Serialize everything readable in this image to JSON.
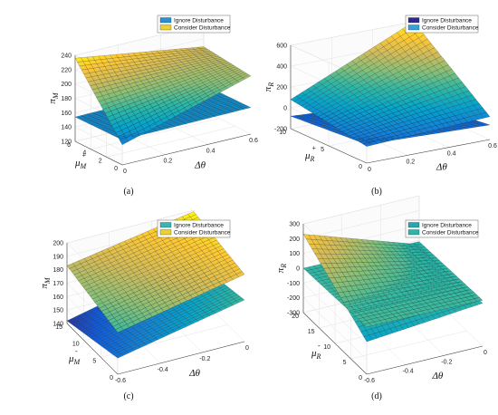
{
  "chart_data": [
    {
      "type": "surface",
      "caption": "(a)",
      "z_label": {
        "main": "π",
        "sub": "M",
        "sup": ""
      },
      "y_label": {
        "main": "μ",
        "sub": "M",
        "sup": "+"
      },
      "x_label": "Δθ",
      "x_ticks": [
        "0",
        "0.2",
        "0.4",
        "0.6"
      ],
      "y_ticks": [
        "0",
        "2",
        "4",
        "6"
      ],
      "z_ticks": [
        "120",
        "140",
        "160",
        "180",
        "200",
        "220",
        "240"
      ],
      "zlim": [
        120,
        240
      ],
      "legend": [
        "Ignore Disturbance",
        "Consider Disturbance"
      ],
      "colors": [
        "#2d8fce",
        "#e9d13a"
      ],
      "series": [
        {
          "name": "Ignore Disturbance",
          "corners": {
            "x0y0": 155,
            "x1y0": 157,
            "x0y1": 154,
            "x1y1": 156
          }
        },
        {
          "name": "Consider Disturbance",
          "corners": {
            "x0y0": 148,
            "x1y0": 201,
            "x0y1": 236,
            "x1y1": 209
          }
        }
      ]
    },
    {
      "type": "surface",
      "caption": "(b)",
      "z_label": {
        "main": "π",
        "sub": "R",
        "sup": ""
      },
      "y_label": {
        "main": "μ",
        "sub": "R",
        "sup": "+"
      },
      "x_label": "Δθ",
      "x_ticks": [
        "0",
        "0.2",
        "0.4",
        "0.6"
      ],
      "y_ticks": [
        "0",
        "5",
        "10"
      ],
      "z_ticks": [
        "-200",
        "0",
        "200",
        "400",
        "600"
      ],
      "zlim": [
        -200,
        600
      ],
      "legend": [
        "Ignore Disturbance",
        "Consider Disturbance"
      ],
      "colors": [
        "#2f2a8a",
        "#3aa0d8"
      ],
      "series": [
        {
          "name": "Ignore Disturbance",
          "corners": {
            "x0y0": -20,
            "x1y0": -60,
            "x0y1": -80,
            "x1y1": -150
          }
        },
        {
          "name": "Consider Disturbance",
          "corners": {
            "x0y0": -40,
            "x1y0": 20,
            "x0y1": 80,
            "x1y1": 600
          }
        }
      ]
    },
    {
      "type": "surface",
      "caption": "(c)",
      "z_label": {
        "main": "π",
        "sub": "M",
        "sup": ""
      },
      "y_label": {
        "main": "μ",
        "sub": "M",
        "sup": "-"
      },
      "x_label": "Δθ",
      "x_ticks": [
        "-0.6",
        "-0.4",
        "-0.2",
        "0"
      ],
      "y_ticks": [
        "0",
        "5",
        "10",
        "15"
      ],
      "z_ticks": [
        "140",
        "150",
        "160",
        "170",
        "180",
        "190",
        "200"
      ],
      "zlim": [
        140,
        200
      ],
      "legend": [
        "Ignore Disturbance",
        "Consider Disturbance"
      ],
      "colors": [
        "#3db3b1",
        "#e9d13a"
      ],
      "series": [
        {
          "name": "Ignore Disturbance",
          "corners": {
            "x0y0": 152,
            "x1y0": 171,
            "x0y1": 142,
            "x1y1": 163
          }
        },
        {
          "name": "Consider Disturbance",
          "corners": {
            "x0y0": 171,
            "x1y0": 190,
            "x0y1": 183,
            "x1y1": 199
          }
        }
      ]
    },
    {
      "type": "surface",
      "caption": "(d)",
      "z_label": {
        "main": "π",
        "sub": "R",
        "sup": ""
      },
      "y_label": {
        "main": "μ",
        "sub": "R",
        "sup": "-"
      },
      "x_label": "Δθ",
      "x_ticks": [
        "-0.6",
        "-0.4",
        "-0.2",
        "0"
      ],
      "y_ticks": [
        "0",
        "5",
        "10",
        "15",
        "20"
      ],
      "z_ticks": [
        "-300",
        "-200",
        "-100",
        "0",
        "100",
        "200",
        "300"
      ],
      "zlim": [
        -300,
        300
      ],
      "legend": [
        "Ignore Disturbance",
        "Consider Disturbance"
      ],
      "colors": [
        "#2aa7aa",
        "#33b3a8"
      ],
      "series": [
        {
          "name": "Ignore Disturbance",
          "corners": {
            "x0y0": 20,
            "x1y0": 10,
            "x0y1": 0,
            "x1y1": -10
          }
        },
        {
          "name": "Consider Disturbance",
          "corners": {
            "x0y0": -80,
            "x1y0": -10,
            "x0y1": 230,
            "x1y1": -30
          }
        }
      ]
    }
  ]
}
